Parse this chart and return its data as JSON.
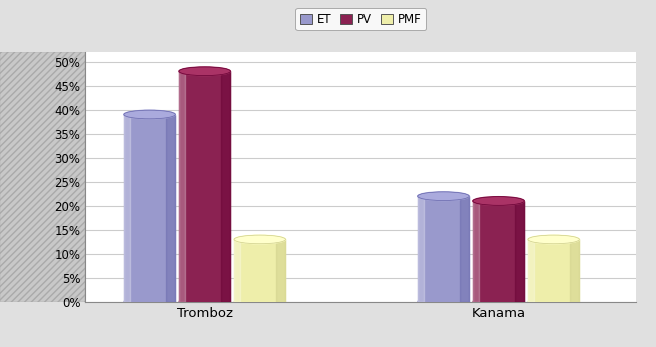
{
  "categories": [
    "Tromboz",
    "Kanama"
  ],
  "series": [
    "ET",
    "PV",
    "PMF"
  ],
  "values": {
    "Tromboz": [
      39,
      48,
      13
    ],
    "Kanama": [
      22,
      21,
      13
    ]
  },
  "colors_face": [
    "#9999CC",
    "#8B2252",
    "#EEEEAA"
  ],
  "colors_top": [
    "#AAAADD",
    "#AA3366",
    "#FFFFCC"
  ],
  "colors_shade": [
    "#6666AA",
    "#660033",
    "#CCCC88"
  ],
  "legend_colors": [
    "#9999CC",
    "#8B2252",
    "#EEEEAA"
  ],
  "ylim": [
    0,
    52
  ],
  "yticks": [
    0,
    5,
    10,
    15,
    20,
    25,
    30,
    35,
    40,
    45,
    50
  ],
  "ytick_labels": [
    "0%",
    "5%",
    "10%",
    "15%",
    "20%",
    "25%",
    "30%",
    "35%",
    "40%",
    "45%",
    "50%"
  ],
  "wall_color": "#C8C8C8",
  "floor_color": "#AAAAAA",
  "plot_bg": "#FFFFFF",
  "grid_color": "#CCCCCC",
  "hatch_color": "#AAAAAA"
}
